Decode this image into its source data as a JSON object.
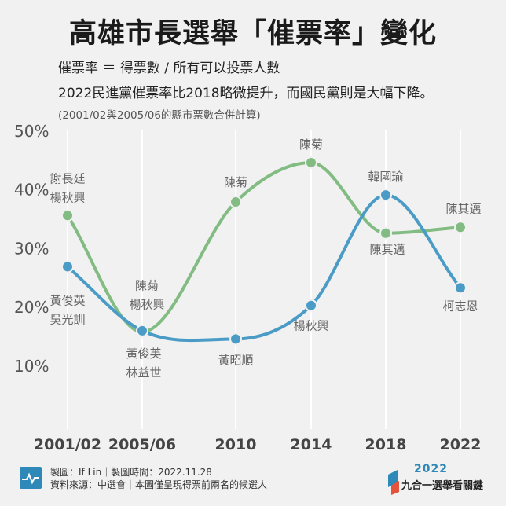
{
  "header": {
    "title": "高雄市長選舉「催票率」變化",
    "formula": "催票率 ＝ 得票數 / 所有可以投票人數",
    "summary": "2022民進黨催票率比2018略微提升，而國民黨則是大幅下降。",
    "note": "(2001/02與2005/06的縣市票數合併計算)"
  },
  "chart_data": {
    "type": "line",
    "categories": [
      "2001/02",
      "2005/06",
      "2010",
      "2014",
      "2018",
      "2022"
    ],
    "y_ticks": [
      "50%",
      "40%",
      "30%",
      "20%",
      "10%"
    ],
    "y_tick_values": [
      50,
      40,
      30,
      20,
      10
    ],
    "ylim": [
      0,
      50
    ],
    "grid": false,
    "colors": {
      "green": "#82bc82",
      "blue": "#4a9cc7",
      "label": "#666666",
      "axis_text": "#444444"
    },
    "series": [
      {
        "color_key": "green",
        "values": [
          35.5,
          15.7,
          37.8,
          44.5,
          32.5,
          33.5
        ],
        "labels": [
          "謝長廷\n楊秋興",
          "陳菊\n楊秋興",
          "陳菊",
          "陳菊",
          "陳其邁",
          "陳其邁"
        ]
      },
      {
        "color_key": "blue",
        "values": [
          26.8,
          15.9,
          14.5,
          20.2,
          39.0,
          23.2
        ],
        "labels": [
          "黃俊英\n吳光訓",
          "黃俊英\n林益世",
          "黃昭順",
          "楊秋興",
          "韓國瑜",
          "柯志恩"
        ]
      }
    ]
  },
  "footer": {
    "line1": "製圖：If Lin｜製圖時間：2022.11.28",
    "line2": "資料來源：中選會｜本圖僅呈現得票前兩名的候選人",
    "brand_year": "2022",
    "brand_name": "九合一選舉看關鍵"
  }
}
